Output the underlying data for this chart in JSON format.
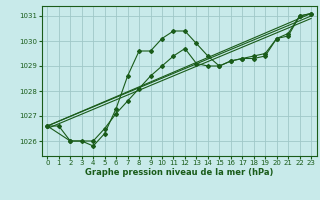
{
  "bg_color": "#c8eaea",
  "grid_color": "#a0c8c8",
  "line_color": "#1a5c1a",
  "text_color": "#1a5c1a",
  "xlabel": "Graphe pression niveau de la mer (hPa)",
  "ylim": [
    1025.4,
    1031.4
  ],
  "xlim": [
    -0.5,
    23.5
  ],
  "yticks": [
    1026,
    1027,
    1028,
    1029,
    1030,
    1031
  ],
  "xticks": [
    0,
    1,
    2,
    3,
    4,
    5,
    6,
    7,
    8,
    9,
    10,
    11,
    12,
    13,
    14,
    15,
    16,
    17,
    18,
    19,
    20,
    21,
    22,
    23
  ],
  "series1": [
    [
      0,
      1026.6
    ],
    [
      1,
      1026.6
    ],
    [
      2,
      1026.0
    ],
    [
      3,
      1026.0
    ],
    [
      4,
      1025.8
    ],
    [
      5,
      1026.3
    ],
    [
      6,
      1027.3
    ],
    [
      7,
      1028.6
    ],
    [
      8,
      1029.6
    ],
    [
      9,
      1029.6
    ],
    [
      10,
      1030.1
    ],
    [
      11,
      1030.4
    ],
    [
      12,
      1030.4
    ],
    [
      13,
      1029.9
    ],
    [
      14,
      1029.4
    ],
    [
      15,
      1029.0
    ],
    [
      16,
      1029.2
    ],
    [
      17,
      1029.3
    ],
    [
      18,
      1029.3
    ],
    [
      19,
      1029.4
    ],
    [
      20,
      1030.1
    ],
    [
      21,
      1030.2
    ],
    [
      22,
      1031.0
    ],
    [
      23,
      1031.1
    ]
  ],
  "series2": [
    [
      0,
      1026.6
    ],
    [
      2,
      1026.0
    ],
    [
      4,
      1026.0
    ],
    [
      5,
      1026.5
    ],
    [
      6,
      1027.1
    ],
    [
      7,
      1027.6
    ],
    [
      8,
      1028.1
    ],
    [
      9,
      1028.6
    ],
    [
      10,
      1029.0
    ],
    [
      11,
      1029.4
    ],
    [
      12,
      1029.7
    ],
    [
      13,
      1029.1
    ],
    [
      14,
      1029.0
    ],
    [
      15,
      1029.0
    ],
    [
      16,
      1029.2
    ],
    [
      17,
      1029.3
    ],
    [
      18,
      1029.4
    ],
    [
      19,
      1029.5
    ],
    [
      20,
      1030.1
    ],
    [
      21,
      1030.3
    ],
    [
      22,
      1031.0
    ],
    [
      23,
      1031.1
    ]
  ],
  "series3_straight": [
    [
      0,
      1026.6
    ],
    [
      23,
      1031.1
    ]
  ],
  "series4_straight": [
    [
      0,
      1026.6
    ],
    [
      23,
      1031.0
    ]
  ],
  "series5_straight": [
    [
      0,
      1026.5
    ],
    [
      23,
      1030.9
    ]
  ]
}
